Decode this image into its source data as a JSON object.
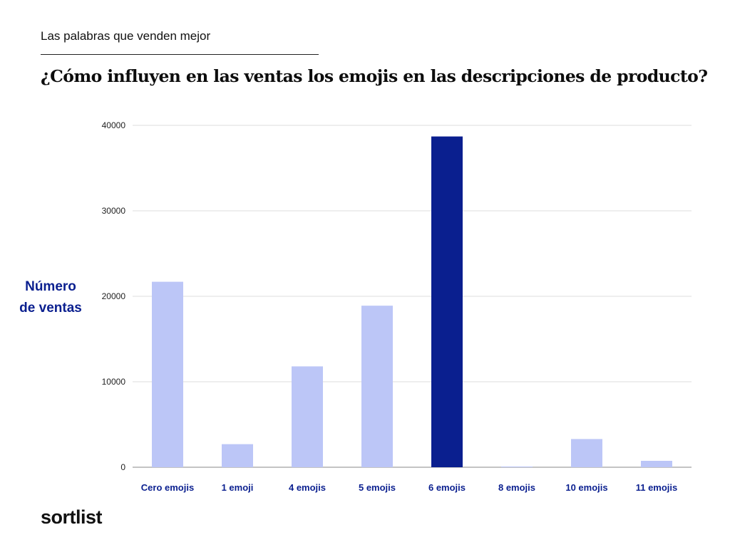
{
  "header": {
    "kicker": "Las palabras que venden mejor",
    "title": "¿Cómo influyen en las ventas los emojis en las descripciones de producto?"
  },
  "brand": {
    "logo_text": "sortlist"
  },
  "colors": {
    "bar_default": "#bcc6f7",
    "bar_highlight": "#0a1f8f",
    "category_label": "#0a1f8f",
    "grid": "#dddddd",
    "tick_label": "#222222"
  },
  "chart_data": {
    "type": "bar",
    "title": "",
    "xlabel": "",
    "ylabel": "Número\nde ventas",
    "categories": [
      "Cero emojis",
      "1 emoji",
      "4 emojis",
      "5 emojis",
      "6 emojis",
      "8 emojis",
      "10 emojis",
      "11 emojis"
    ],
    "values": [
      21700,
      2700,
      11800,
      18900,
      38700,
      50,
      3300,
      750
    ],
    "highlight_category": "6 emojis",
    "ylim": [
      0,
      40000
    ],
    "yticks": [
      0,
      10000,
      20000,
      30000,
      40000
    ],
    "grid": true,
    "legend": "none"
  }
}
